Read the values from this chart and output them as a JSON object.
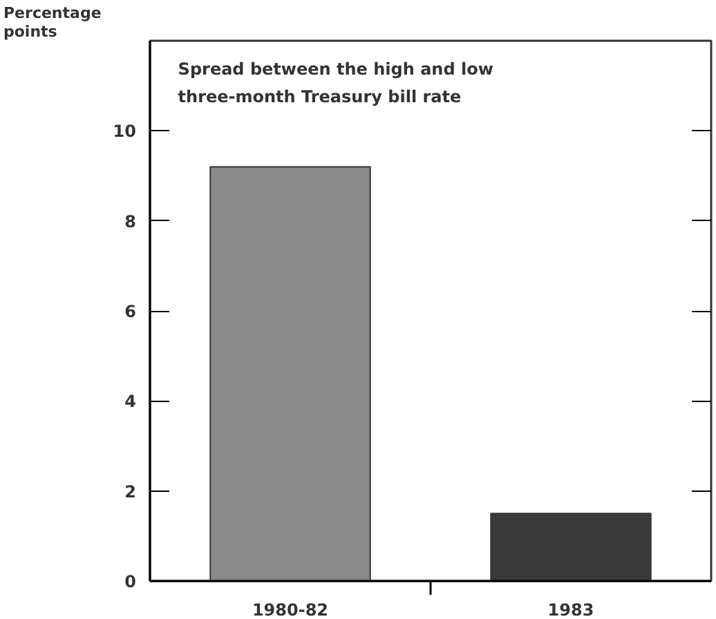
{
  "chart_data": {
    "type": "bar",
    "title": "Spread between the high and low\nthree-month Treasury bill rate",
    "ylabel": "Percentage\npoints",
    "categories": [
      "1980-82",
      "1983"
    ],
    "values": [
      9.2,
      1.5
    ],
    "colors": [
      "#8a8a8a",
      "#3a3a3a"
    ],
    "ylim": [
      0,
      12
    ],
    "yticks": [
      0,
      2,
      4,
      6,
      8,
      10
    ],
    "grid": false
  }
}
